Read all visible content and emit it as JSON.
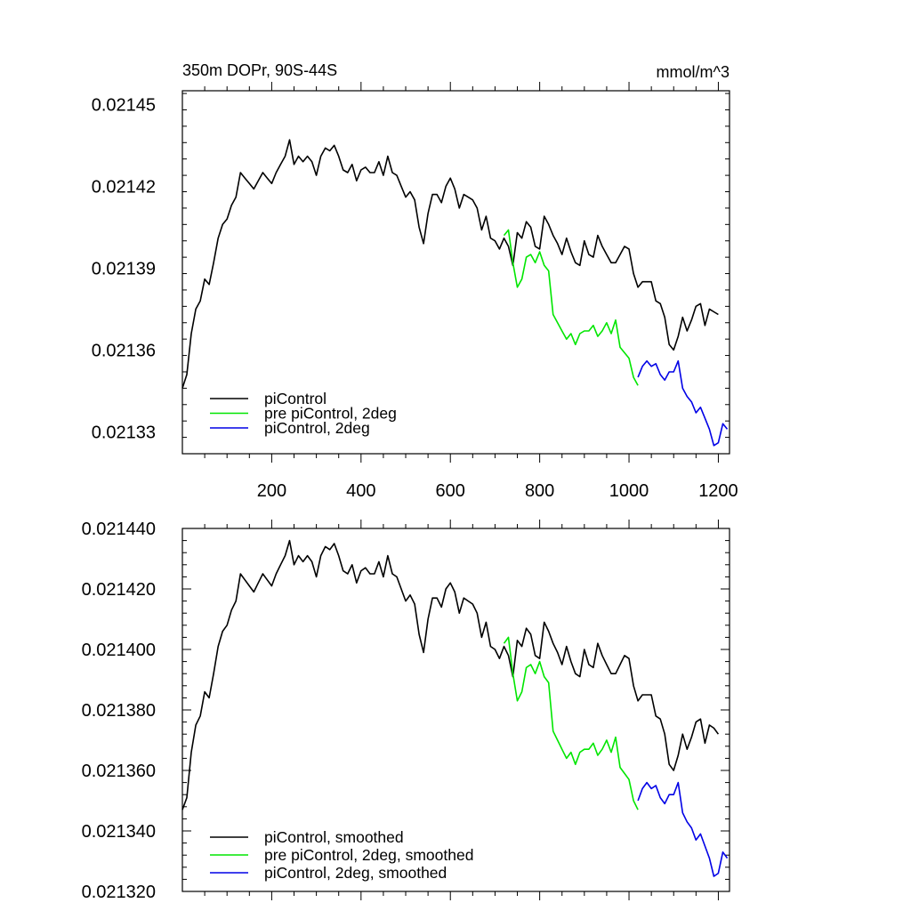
{
  "chart_data": [
    {
      "type": "line",
      "title": "350m DOPr, 90S-44S",
      "units": "mmol/m^3",
      "xlim": [
        0,
        1225
      ],
      "ylim": [
        0.021322,
        0.021455
      ],
      "xticks": [
        200,
        400,
        600,
        800,
        1000,
        1200
      ],
      "xtick_labels": [
        "200",
        "400",
        "600",
        "800",
        "1000",
        "1200"
      ],
      "yticks": [
        0.02133,
        0.02136,
        0.02139,
        0.02142,
        0.02145
      ],
      "ytick_labels": [
        "0.02133",
        "0.02136",
        "0.02139",
        "0.02142",
        "0.02145"
      ],
      "legend": "bottom-left",
      "series": [
        {
          "name": "piControl",
          "color": "#000000",
          "x": [
            0,
            10,
            20,
            30,
            40,
            50,
            60,
            70,
            80,
            90,
            100,
            110,
            120,
            130,
            140,
            150,
            160,
            170,
            180,
            190,
            200,
            210,
            220,
            230,
            240,
            250,
            260,
            270,
            280,
            290,
            300,
            310,
            320,
            330,
            340,
            350,
            360,
            370,
            380,
            390,
            400,
            410,
            420,
            430,
            440,
            450,
            460,
            470,
            480,
            490,
            500,
            510,
            520,
            530,
            540,
            550,
            560,
            570,
            580,
            590,
            600,
            610,
            620,
            630,
            640,
            650,
            660,
            670,
            680,
            690,
            700,
            710,
            720,
            730,
            740,
            750,
            760,
            770,
            780,
            790,
            800,
            810,
            820,
            830,
            840,
            850,
            860,
            870,
            880,
            890,
            900,
            910,
            920,
            930,
            940,
            950,
            960,
            970,
            980,
            990,
            1000,
            1010,
            1020,
            1030,
            1040,
            1050,
            1060,
            1070,
            1080,
            1090,
            1100,
            1110,
            1120,
            1130,
            1140,
            1150,
            1160,
            1170,
            1180,
            1190,
            1200
          ],
          "values": [
            0.021346,
            0.021351,
            0.021366,
            0.021375,
            0.021378,
            0.021386,
            0.021384,
            0.021392,
            0.021401,
            0.021406,
            0.021408,
            0.021413,
            0.021416,
            0.021425,
            0.021423,
            0.021421,
            0.021419,
            0.021422,
            0.021425,
            0.021423,
            0.021421,
            0.021425,
            0.021428,
            0.021431,
            0.021437,
            0.021428,
            0.021431,
            0.021429,
            0.021431,
            0.021429,
            0.021424,
            0.021431,
            0.021434,
            0.021433,
            0.021435,
            0.021431,
            0.021426,
            0.021425,
            0.021428,
            0.021422,
            0.021426,
            0.021427,
            0.021425,
            0.021425,
            0.021429,
            0.021424,
            0.021431,
            0.021425,
            0.021424,
            0.02142,
            0.021416,
            0.021418,
            0.021415,
            0.021405,
            0.021399,
            0.02141,
            0.021417,
            0.021417,
            0.021414,
            0.02142,
            0.021423,
            0.021419,
            0.021412,
            0.021417,
            0.021416,
            0.021415,
            0.021412,
            0.021404,
            0.021409,
            0.021401,
            0.0214,
            0.021397,
            0.021401,
            0.021398,
            0.021391,
            0.021403,
            0.021401,
            0.021407,
            0.021405,
            0.021398,
            0.021397,
            0.021409,
            0.021406,
            0.021402,
            0.021399,
            0.021395,
            0.021401,
            0.021396,
            0.021392,
            0.021391,
            0.0214,
            0.021395,
            0.021394,
            0.021402,
            0.021398,
            0.021395,
            0.021392,
            0.021392,
            0.021395,
            0.021398,
            0.021397,
            0.021388,
            0.021383,
            0.021385,
            0.021385,
            0.021385,
            0.021378,
            0.021377,
            0.021372,
            0.021362,
            0.02136,
            0.021365,
            0.021372,
            0.021367,
            0.021371,
            0.021376,
            0.021377,
            0.021369,
            0.021375,
            0.021374,
            0.021373
          ]
        },
        {
          "name": "pre piControl, 2deg",
          "color": "#00e600",
          "x": [
            720,
            730,
            740,
            750,
            760,
            770,
            780,
            790,
            800,
            810,
            820,
            830,
            840,
            850,
            860,
            870,
            880,
            890,
            900,
            910,
            920,
            930,
            940,
            950,
            960,
            970,
            980,
            990,
            1000,
            1010,
            1020
          ],
          "values": [
            0.021402,
            0.021404,
            0.021392,
            0.021383,
            0.021386,
            0.021394,
            0.021395,
            0.021392,
            0.021396,
            0.021391,
            0.021389,
            0.021373,
            0.02137,
            0.021367,
            0.021364,
            0.021366,
            0.021362,
            0.021366,
            0.021367,
            0.021367,
            0.021369,
            0.021365,
            0.021367,
            0.02137,
            0.021366,
            0.021371,
            0.021361,
            0.021359,
            0.021357,
            0.02135,
            0.021347
          ]
        },
        {
          "name": "piControl, 2deg",
          "color": "#0000e6",
          "x": [
            1020,
            1030,
            1040,
            1050,
            1060,
            1070,
            1080,
            1090,
            1100,
            1110,
            1120,
            1130,
            1140,
            1150,
            1160,
            1170,
            1180,
            1190,
            1200,
            1210,
            1220
          ],
          "values": [
            0.02135,
            0.021354,
            0.021356,
            0.021354,
            0.021355,
            0.021351,
            0.021349,
            0.021352,
            0.021352,
            0.021356,
            0.021346,
            0.021343,
            0.021341,
            0.021337,
            0.021339,
            0.021335,
            0.021331,
            0.021325,
            0.021326,
            0.021333,
            0.021331
          ]
        }
      ]
    },
    {
      "type": "line",
      "xlim": [
        0,
        1225
      ],
      "ylim": [
        0.02132,
        0.02144
      ],
      "yticks": [
        0.02132,
        0.02134,
        0.02136,
        0.02138,
        0.0214,
        0.02142,
        0.02144
      ],
      "ytick_labels": [
        "0.021320",
        "0.021340",
        "0.021360",
        "0.021380",
        "0.021400",
        "0.021420",
        "0.021440"
      ],
      "legend": "bottom-left",
      "series": [
        {
          "name": "piControl, smoothed",
          "color": "#000000",
          "x": [
            0,
            10,
            20,
            30,
            40,
            50,
            60,
            70,
            80,
            90,
            100,
            110,
            120,
            130,
            140,
            150,
            160,
            170,
            180,
            190,
            200,
            210,
            220,
            230,
            240,
            250,
            260,
            270,
            280,
            290,
            300,
            310,
            320,
            330,
            340,
            350,
            360,
            370,
            380,
            390,
            400,
            410,
            420,
            430,
            440,
            450,
            460,
            470,
            480,
            490,
            500,
            510,
            520,
            530,
            540,
            550,
            560,
            570,
            580,
            590,
            600,
            610,
            620,
            630,
            640,
            650,
            660,
            670,
            680,
            690,
            700,
            710,
            720,
            730,
            740,
            750,
            760,
            770,
            780,
            790,
            800,
            810,
            820,
            830,
            840,
            850,
            860,
            870,
            880,
            890,
            900,
            910,
            920,
            930,
            940,
            950,
            960,
            970,
            980,
            990,
            1000,
            1010,
            1020,
            1030,
            1040,
            1050,
            1060,
            1070,
            1080,
            1090,
            1100,
            1110,
            1120,
            1130,
            1140,
            1150,
            1160,
            1170,
            1180,
            1190,
            1200
          ],
          "values": [
            0.021347,
            0.021351,
            0.021366,
            0.021375,
            0.021378,
            0.021386,
            0.021384,
            0.021392,
            0.021401,
            0.021406,
            0.021408,
            0.021413,
            0.021416,
            0.021425,
            0.021423,
            0.021421,
            0.021419,
            0.021422,
            0.021425,
            0.021423,
            0.021421,
            0.021425,
            0.021428,
            0.021431,
            0.021436,
            0.021428,
            0.021431,
            0.021429,
            0.021431,
            0.021429,
            0.021424,
            0.021431,
            0.021434,
            0.021433,
            0.021435,
            0.021431,
            0.021426,
            0.021425,
            0.021428,
            0.021422,
            0.021426,
            0.021427,
            0.021425,
            0.021425,
            0.021429,
            0.021424,
            0.021431,
            0.021425,
            0.021424,
            0.02142,
            0.021416,
            0.021418,
            0.021415,
            0.021405,
            0.021399,
            0.02141,
            0.021417,
            0.021417,
            0.021414,
            0.02142,
            0.021422,
            0.021419,
            0.021412,
            0.021417,
            0.021416,
            0.021415,
            0.021412,
            0.021404,
            0.021409,
            0.021401,
            0.0214,
            0.021397,
            0.021401,
            0.021398,
            0.021391,
            0.021403,
            0.021401,
            0.021407,
            0.021405,
            0.021398,
            0.021397,
            0.021409,
            0.021406,
            0.021402,
            0.021399,
            0.021395,
            0.021401,
            0.021396,
            0.021392,
            0.021391,
            0.0214,
            0.021395,
            0.021394,
            0.021402,
            0.021398,
            0.021395,
            0.021392,
            0.021392,
            0.021395,
            0.021398,
            0.021397,
            0.021388,
            0.021383,
            0.021385,
            0.021385,
            0.021385,
            0.021378,
            0.021377,
            0.021372,
            0.021362,
            0.02136,
            0.021365,
            0.021372,
            0.021367,
            0.021371,
            0.021376,
            0.021377,
            0.021369,
            0.021375,
            0.021374,
            0.021372
          ]
        },
        {
          "name": "pre piControl, 2deg, smoothed",
          "color": "#00e600",
          "x": [
            720,
            730,
            740,
            750,
            760,
            770,
            780,
            790,
            800,
            810,
            820,
            830,
            840,
            850,
            860,
            870,
            880,
            890,
            900,
            910,
            920,
            930,
            940,
            950,
            960,
            970,
            980,
            990,
            1000,
            1010,
            1020
          ],
          "values": [
            0.021402,
            0.021404,
            0.021392,
            0.021383,
            0.021386,
            0.021394,
            0.021395,
            0.021392,
            0.021396,
            0.021391,
            0.021389,
            0.021373,
            0.02137,
            0.021367,
            0.021364,
            0.021366,
            0.021362,
            0.021366,
            0.021367,
            0.021367,
            0.021369,
            0.021365,
            0.021367,
            0.02137,
            0.021366,
            0.021371,
            0.021361,
            0.021359,
            0.021357,
            0.02135,
            0.021347
          ]
        },
        {
          "name": "piControl, 2deg, smoothed",
          "color": "#0000e6",
          "x": [
            1020,
            1030,
            1040,
            1050,
            1060,
            1070,
            1080,
            1090,
            1100,
            1110,
            1120,
            1130,
            1140,
            1150,
            1160,
            1170,
            1180,
            1190,
            1200,
            1210,
            1220
          ],
          "values": [
            0.02135,
            0.021354,
            0.021356,
            0.021354,
            0.021355,
            0.021351,
            0.021349,
            0.021352,
            0.021352,
            0.021356,
            0.021346,
            0.021343,
            0.021341,
            0.021337,
            0.021339,
            0.021335,
            0.021331,
            0.021325,
            0.021326,
            0.021333,
            0.021331
          ]
        }
      ]
    }
  ]
}
